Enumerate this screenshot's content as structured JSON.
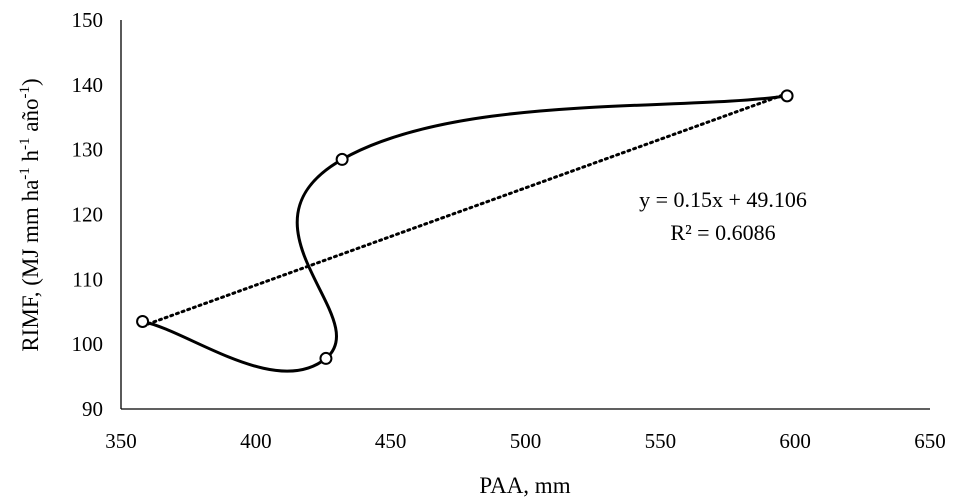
{
  "chart_data": {
    "type": "scatter",
    "x": [
      358,
      426,
      432,
      597
    ],
    "y": [
      103.5,
      97.8,
      128.5,
      138.3
    ],
    "xlabel": "PAA, mm",
    "ylabel": {
      "parts": [
        "RIMF, (MJ mm ha",
        "-1",
        " h",
        "-1",
        " año",
        "-1",
        ")"
      ]
    },
    "xlim": [
      350,
      650
    ],
    "ylim": [
      90,
      150
    ],
    "xticks": [
      350,
      400,
      450,
      500,
      550,
      600,
      650
    ],
    "yticks": [
      90,
      100,
      110,
      120,
      130,
      140,
      150
    ],
    "trendline": {
      "type": "linear",
      "slope": 0.15,
      "intercept": 49.106,
      "equation": "y = 0.15x + 49.106",
      "r_squared": "R² = 0.6086"
    },
    "smooth_line": true,
    "grid": false,
    "legend": "none",
    "colors": {
      "line": "#000000",
      "marker": "#000000"
    }
  }
}
